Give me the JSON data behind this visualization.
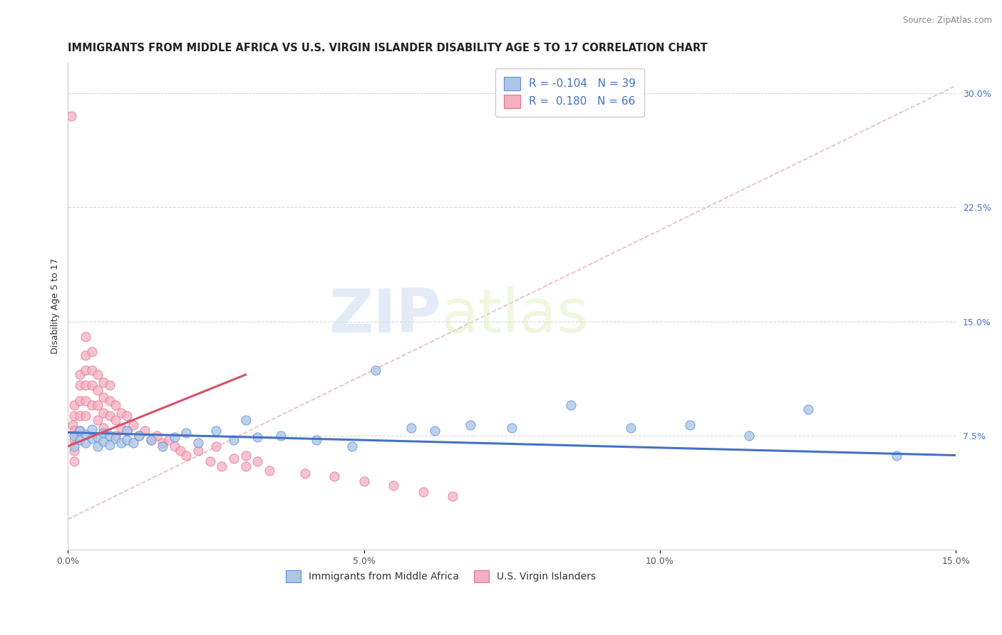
{
  "title": "IMMIGRANTS FROM MIDDLE AFRICA VS U.S. VIRGIN ISLANDER DISABILITY AGE 5 TO 17 CORRELATION CHART",
  "source": "Source: ZipAtlas.com",
  "ylabel": "Disability Age 5 to 17",
  "xlim": [
    0.0,
    0.15
  ],
  "ylim": [
    0.0,
    0.32
  ],
  "xtick_vals": [
    0.0,
    0.05,
    0.1,
    0.15
  ],
  "xtick_labels": [
    "0.0%",
    "5.0%",
    "10.0%",
    "15.0%"
  ],
  "yticks_right": [
    0.075,
    0.15,
    0.225,
    0.3
  ],
  "ytick_labels_right": [
    "7.5%",
    "15.0%",
    "22.5%",
    "30.0%"
  ],
  "blue_color": "#adc6e8",
  "pink_color": "#f4afc0",
  "blue_edge_color": "#5b8dd9",
  "pink_edge_color": "#e07090",
  "blue_line_color": "#4472c4",
  "pink_line_color": "#d9506a",
  "dashed_line_color": "#e8b0bb",
  "grid_color": "#d8d8d8",
  "watermark_zip": "ZIP",
  "watermark_atlas": "atlas",
  "blue_scatter_x": [
    0.001,
    0.001,
    0.002,
    0.002,
    0.003,
    0.003,
    0.004,
    0.004,
    0.005,
    0.005,
    0.006,
    0.006,
    0.007,
    0.007,
    0.008,
    0.009,
    0.01,
    0.01,
    0.011,
    0.012,
    0.014,
    0.016,
    0.018,
    0.02,
    0.022,
    0.025,
    0.028,
    0.03,
    0.032,
    0.036,
    0.042,
    0.048,
    0.052,
    0.058,
    0.062,
    0.068,
    0.075,
    0.085,
    0.095,
    0.105,
    0.115,
    0.125,
    0.14
  ],
  "blue_scatter_y": [
    0.068,
    0.075,
    0.072,
    0.078,
    0.07,
    0.076,
    0.073,
    0.079,
    0.068,
    0.074,
    0.071,
    0.077,
    0.069,
    0.075,
    0.073,
    0.07,
    0.072,
    0.078,
    0.07,
    0.075,
    0.072,
    0.068,
    0.074,
    0.077,
    0.07,
    0.078,
    0.072,
    0.085,
    0.074,
    0.075,
    0.072,
    0.068,
    0.118,
    0.08,
    0.078,
    0.082,
    0.08,
    0.095,
    0.08,
    0.082,
    0.075,
    0.092,
    0.062
  ],
  "pink_scatter_x": [
    0.0005,
    0.0008,
    0.001,
    0.001,
    0.001,
    0.001,
    0.001,
    0.001,
    0.002,
    0.002,
    0.002,
    0.002,
    0.002,
    0.003,
    0.003,
    0.003,
    0.003,
    0.003,
    0.003,
    0.004,
    0.004,
    0.004,
    0.004,
    0.005,
    0.005,
    0.005,
    0.005,
    0.006,
    0.006,
    0.006,
    0.006,
    0.007,
    0.007,
    0.007,
    0.008,
    0.008,
    0.008,
    0.009,
    0.009,
    0.01,
    0.01,
    0.011,
    0.012,
    0.013,
    0.014,
    0.015,
    0.016,
    0.017,
    0.018,
    0.019,
    0.02,
    0.022,
    0.024,
    0.026,
    0.028,
    0.03,
    0.032,
    0.034,
    0.04,
    0.045,
    0.05,
    0.055,
    0.06,
    0.065,
    0.025,
    0.03
  ],
  "pink_scatter_y": [
    0.285,
    0.082,
    0.095,
    0.088,
    0.078,
    0.072,
    0.065,
    0.058,
    0.115,
    0.108,
    0.098,
    0.088,
    0.078,
    0.14,
    0.128,
    0.118,
    0.108,
    0.098,
    0.088,
    0.13,
    0.118,
    0.108,
    0.095,
    0.115,
    0.105,
    0.095,
    0.085,
    0.11,
    0.1,
    0.09,
    0.08,
    0.108,
    0.098,
    0.088,
    0.095,
    0.085,
    0.075,
    0.09,
    0.08,
    0.088,
    0.078,
    0.082,
    0.075,
    0.078,
    0.072,
    0.075,
    0.07,
    0.072,
    0.068,
    0.065,
    0.062,
    0.065,
    0.058,
    0.055,
    0.06,
    0.055,
    0.058,
    0.052,
    0.05,
    0.048,
    0.045,
    0.042,
    0.038,
    0.035,
    0.068,
    0.062
  ],
  "blue_trend_x": [
    0.0,
    0.15
  ],
  "blue_trend_y": [
    0.077,
    0.062
  ],
  "pink_trend_x": [
    0.0,
    0.03
  ],
  "pink_trend_y": [
    0.068,
    0.115
  ],
  "dashed_line_x": [
    0.0,
    0.15
  ],
  "dashed_line_y": [
    0.02,
    0.305
  ],
  "title_fontsize": 10.5,
  "axis_fontsize": 9,
  "tick_fontsize": 9,
  "legend_fontsize": 11
}
